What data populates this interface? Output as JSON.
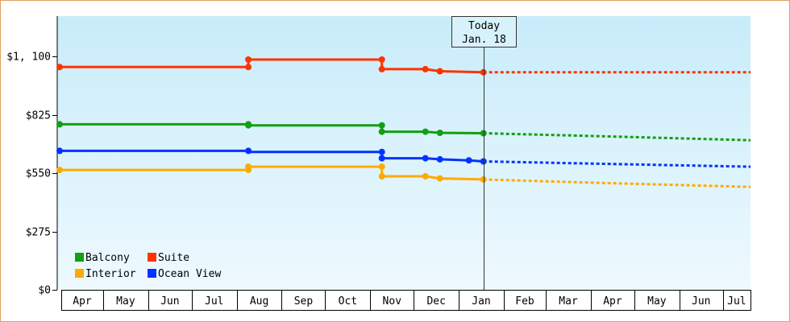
{
  "chart_data": {
    "type": "line",
    "step": true,
    "y_tick_labels": [
      "$0",
      "$275",
      "$550",
      "$825",
      "$1, 100"
    ],
    "y_ticks": [
      0,
      275,
      550,
      825,
      1100
    ],
    "ylim": [
      0,
      1290
    ],
    "x_months": [
      "Apr",
      "May",
      "Jun",
      "Jul",
      "Aug",
      "Sep",
      "Oct",
      "Nov",
      "Dec",
      "Jan",
      "Feb",
      "Mar",
      "Apr",
      "May",
      "Jun",
      "Jul"
    ],
    "x_start": "2019-04-01",
    "x_end": "2020-07-20",
    "today": {
      "line1": "Today",
      "line2": "Jan. 18",
      "date": "2020-01-18"
    },
    "series": [
      {
        "name": "Suite",
        "color": "#ff3300",
        "points": [
          [
            "2019-04-01",
            1050
          ],
          [
            "2019-08-09",
            1050
          ],
          [
            "2019-08-09",
            1085
          ],
          [
            "2019-11-09",
            1085
          ],
          [
            "2019-11-09",
            1040
          ],
          [
            "2019-12-09",
            1040
          ],
          [
            "2019-12-19",
            1030
          ],
          [
            "2020-01-18",
            1025
          ]
        ],
        "forecast": [
          [
            "2020-01-18",
            1025
          ],
          [
            "2020-07-20",
            1025
          ]
        ],
        "markers": [
          [
            "2019-04-01",
            1050
          ],
          [
            "2019-08-09",
            1050
          ],
          [
            "2019-08-09",
            1085
          ],
          [
            "2019-11-09",
            1085
          ],
          [
            "2019-11-09",
            1040
          ],
          [
            "2019-12-09",
            1040
          ],
          [
            "2019-12-19",
            1030
          ],
          [
            "2020-01-18",
            1025
          ]
        ]
      },
      {
        "name": "Balcony",
        "color": "#11a011",
        "points": [
          [
            "2019-04-01",
            780
          ],
          [
            "2019-08-09",
            780
          ],
          [
            "2019-08-09",
            775
          ],
          [
            "2019-11-09",
            775
          ],
          [
            "2019-11-09",
            745
          ],
          [
            "2019-12-09",
            745
          ],
          [
            "2019-12-19",
            740
          ],
          [
            "2020-01-18",
            738
          ]
        ],
        "forecast": [
          [
            "2020-01-18",
            738
          ],
          [
            "2020-04-01",
            725
          ],
          [
            "2020-07-20",
            705
          ]
        ],
        "markers": [
          [
            "2019-04-01",
            780
          ],
          [
            "2019-08-09",
            780
          ],
          [
            "2019-08-09",
            775
          ],
          [
            "2019-11-09",
            775
          ],
          [
            "2019-11-09",
            745
          ],
          [
            "2019-12-09",
            745
          ],
          [
            "2019-12-19",
            740
          ],
          [
            "2020-01-18",
            738
          ]
        ]
      },
      {
        "name": "Ocean View",
        "color": "#0033ff",
        "points": [
          [
            "2019-04-01",
            655
          ],
          [
            "2019-08-09",
            655
          ],
          [
            "2019-08-09",
            650
          ],
          [
            "2019-11-09",
            650
          ],
          [
            "2019-11-09",
            620
          ],
          [
            "2019-12-09",
            620
          ],
          [
            "2019-12-19",
            615
          ],
          [
            "2020-01-08",
            610
          ],
          [
            "2020-01-18",
            605
          ]
        ],
        "forecast": [
          [
            "2020-01-18",
            605
          ],
          [
            "2020-04-01",
            595
          ],
          [
            "2020-07-20",
            580
          ]
        ],
        "markers": [
          [
            "2019-04-01",
            655
          ],
          [
            "2019-08-09",
            655
          ],
          [
            "2019-11-09",
            650
          ],
          [
            "2019-11-09",
            620
          ],
          [
            "2019-12-09",
            620
          ],
          [
            "2019-12-19",
            615
          ],
          [
            "2020-01-08",
            610
          ],
          [
            "2020-01-18",
            605
          ]
        ]
      },
      {
        "name": "Interior",
        "color": "#ffaa00",
        "points": [
          [
            "2019-04-01",
            565
          ],
          [
            "2019-08-09",
            565
          ],
          [
            "2019-08-09",
            580
          ],
          [
            "2019-11-09",
            580
          ],
          [
            "2019-11-09",
            535
          ],
          [
            "2019-12-09",
            535
          ],
          [
            "2019-12-19",
            525
          ],
          [
            "2020-01-18",
            520
          ]
        ],
        "forecast": [
          [
            "2020-01-18",
            520
          ],
          [
            "2020-04-01",
            505
          ],
          [
            "2020-07-20",
            485
          ]
        ],
        "markers": [
          [
            "2019-04-01",
            565
          ],
          [
            "2019-08-09",
            565
          ],
          [
            "2019-08-09",
            580
          ],
          [
            "2019-11-09",
            580
          ],
          [
            "2019-11-09",
            535
          ],
          [
            "2019-12-09",
            535
          ],
          [
            "2019-12-19",
            525
          ],
          [
            "2020-01-18",
            520
          ]
        ]
      }
    ],
    "legend": [
      {
        "name": "Balcony",
        "color": "#11a011"
      },
      {
        "name": "Suite",
        "color": "#ff3300"
      },
      {
        "name": "Interior",
        "color": "#ffaa00"
      },
      {
        "name": "Ocean View",
        "color": "#0033ff"
      }
    ],
    "legend_position": "bottom-left",
    "background_gradient": [
      "#c8ecfa",
      "#eef9fe"
    ],
    "grid": false
  }
}
